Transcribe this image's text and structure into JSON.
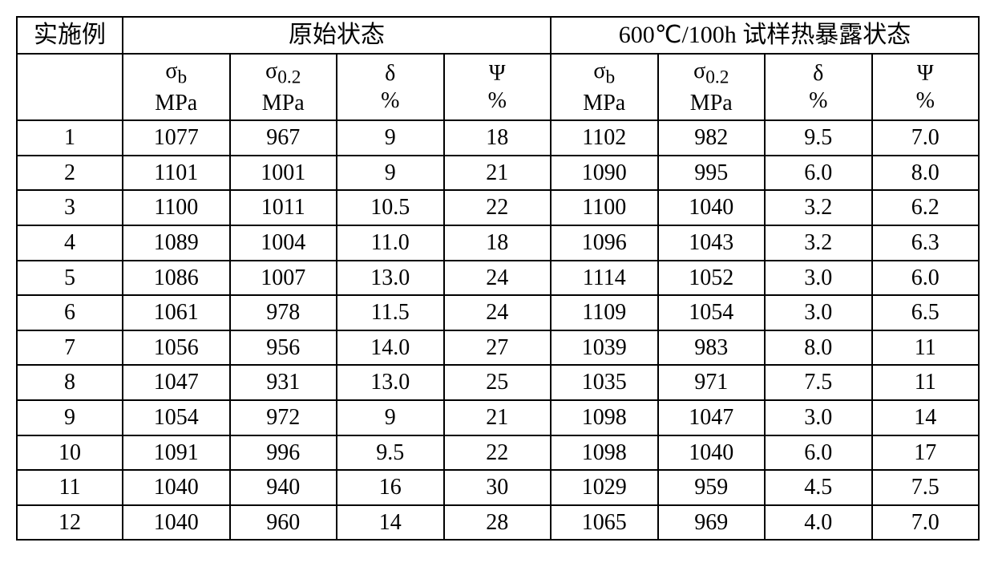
{
  "header": {
    "col0": "实施例",
    "group1": "原始状态",
    "group2": "600℃/100h 试样热暴露状态"
  },
  "subheaders": {
    "sigma_b_l1": "σ",
    "sigma_b_sub": "b",
    "sigma_b_l2": "MPa",
    "sigma_02_l1": "σ",
    "sigma_02_sub": "0.2",
    "sigma_02_l2": "MPa",
    "delta_l1": "δ",
    "delta_l2": "%",
    "psi_l1": "Ψ",
    "psi_l2": "%"
  },
  "rows": [
    {
      "n": "1",
      "a": "1077",
      "b": "967",
      "c": "9",
      "d": "18",
      "e": "1102",
      "f": "982",
      "g": "9.5",
      "h": "7.0"
    },
    {
      "n": "2",
      "a": "1101",
      "b": "1001",
      "c": "9",
      "d": "21",
      "e": "1090",
      "f": "995",
      "g": "6.0",
      "h": "8.0"
    },
    {
      "n": "3",
      "a": "1100",
      "b": "1011",
      "c": "10.5",
      "d": "22",
      "e": "1100",
      "f": "1040",
      "g": "3.2",
      "h": "6.2"
    },
    {
      "n": "4",
      "a": "1089",
      "b": "1004",
      "c": "11.0",
      "d": "18",
      "e": "1096",
      "f": "1043",
      "g": "3.2",
      "h": "6.3"
    },
    {
      "n": "5",
      "a": "1086",
      "b": "1007",
      "c": "13.0",
      "d": "24",
      "e": "1114",
      "f": "1052",
      "g": "3.0",
      "h": "6.0"
    },
    {
      "n": "6",
      "a": "1061",
      "b": "978",
      "c": "11.5",
      "d": "24",
      "e": "1109",
      "f": "1054",
      "g": "3.0",
      "h": "6.5"
    },
    {
      "n": "7",
      "a": "1056",
      "b": "956",
      "c": "14.0",
      "d": "27",
      "e": "1039",
      "f": "983",
      "g": "8.0",
      "h": "11"
    },
    {
      "n": "8",
      "a": "1047",
      "b": "931",
      "c": "13.0",
      "d": "25",
      "e": "1035",
      "f": "971",
      "g": "7.5",
      "h": "11"
    },
    {
      "n": "9",
      "a": "1054",
      "b": "972",
      "c": "9",
      "d": "21",
      "e": "1098",
      "f": "1047",
      "g": "3.0",
      "h": "14"
    },
    {
      "n": "10",
      "a": "1091",
      "b": "996",
      "c": "9.5",
      "d": "22",
      "e": "1098",
      "f": "1040",
      "g": "6.0",
      "h": "17"
    },
    {
      "n": "11",
      "a": "1040",
      "b": "940",
      "c": "16",
      "d": "30",
      "e": "1029",
      "f": "959",
      "g": "4.5",
      "h": "7.5"
    },
    {
      "n": "12",
      "a": "1040",
      "b": "960",
      "c": "14",
      "d": "28",
      "e": "1065",
      "f": "969",
      "g": "4.0",
      "h": "7.0"
    }
  ],
  "style": {
    "border_color": "#000000",
    "background_color": "#ffffff",
    "text_color": "#000000",
    "header_fontsize": 30,
    "cell_fontsize": 28,
    "font_family": "Times New Roman / SimSun"
  }
}
